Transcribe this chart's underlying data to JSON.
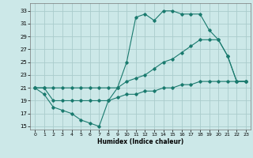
{
  "xlabel": "Humidex (Indice chaleur)",
  "bg_color": "#cce8e8",
  "grid_color": "#aacccc",
  "line_color": "#1a7a6e",
  "xlim": [
    -0.5,
    23.5
  ],
  "ylim": [
    14.5,
    34.2
  ],
  "yticks": [
    15,
    17,
    19,
    21,
    23,
    25,
    27,
    29,
    31,
    33
  ],
  "xticks": [
    0,
    1,
    2,
    3,
    4,
    5,
    6,
    7,
    8,
    9,
    10,
    11,
    12,
    13,
    14,
    15,
    16,
    17,
    18,
    19,
    20,
    21,
    22,
    23
  ],
  "line1_x": [
    0,
    1,
    2,
    3,
    4,
    5,
    6,
    7,
    8,
    9,
    10,
    11,
    12,
    13,
    14,
    15,
    16,
    17,
    18,
    19,
    20,
    21,
    22,
    23
  ],
  "line1_y": [
    21,
    20,
    18,
    17.5,
    17,
    16,
    15.5,
    15,
    19,
    21,
    25,
    32,
    32.5,
    31.5,
    33,
    33,
    32.5,
    32.5,
    32.5,
    30,
    28.5,
    26,
    22,
    22
  ],
  "line2_x": [
    0,
    1,
    2,
    3,
    4,
    5,
    6,
    7,
    8,
    9,
    10,
    11,
    12,
    13,
    14,
    15,
    16,
    17,
    18,
    19,
    20,
    21,
    22,
    23
  ],
  "line2_y": [
    21,
    21,
    21,
    21,
    21,
    21,
    21,
    21,
    21,
    21,
    22,
    22.5,
    23,
    24,
    25,
    25.5,
    26.5,
    27.5,
    28.5,
    28.5,
    28.5,
    26,
    22,
    22
  ],
  "line3_x": [
    0,
    1,
    2,
    3,
    4,
    5,
    6,
    7,
    8,
    9,
    10,
    11,
    12,
    13,
    14,
    15,
    16,
    17,
    18,
    19,
    20,
    21,
    22,
    23
  ],
  "line3_y": [
    21,
    21,
    19,
    19,
    19,
    19,
    19,
    19,
    19,
    19.5,
    20,
    20,
    20.5,
    20.5,
    21,
    21,
    21.5,
    21.5,
    22,
    22,
    22,
    22,
    22,
    22
  ]
}
